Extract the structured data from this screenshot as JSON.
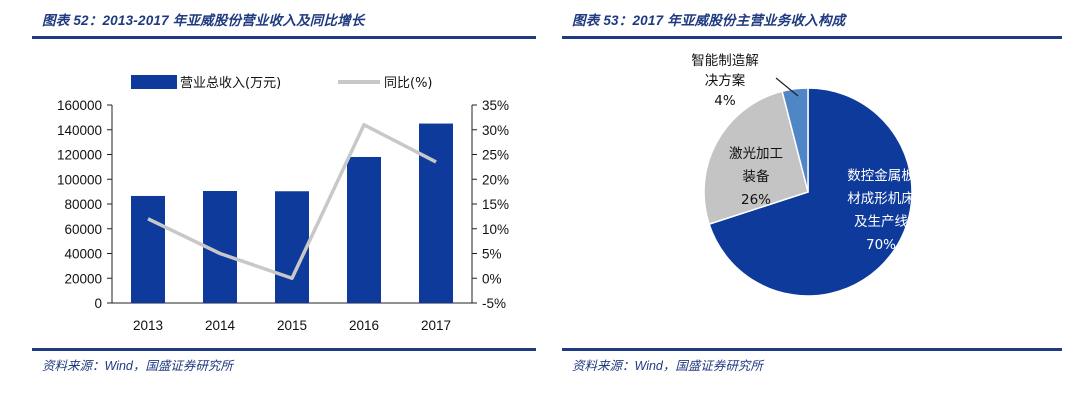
{
  "left": {
    "title": "图表 52：2013-2017 年亚威股份营业收入及同比增长",
    "source": "资料来源：Wind，国盛证券研究所"
  },
  "right": {
    "title": "图表 53：2017 年亚威股份主营业务收入构成",
    "source": "资料来源：Wind，国盛证券研究所"
  },
  "chart_data": [
    {
      "type": "bar",
      "categories": [
        "2013",
        "2014",
        "2015",
        "2016",
        "2017"
      ],
      "series": [
        {
          "name": "营业总收入(万元)",
          "type": "bar",
          "axis": "left",
          "color": "#0e3a9b",
          "values": [
            86500,
            90500,
            90300,
            118000,
            145000
          ]
        },
        {
          "name": "同比(%)",
          "type": "line",
          "axis": "right",
          "color": "#c8c8c8",
          "values": [
            12,
            5,
            0,
            31,
            23.5
          ]
        }
      ],
      "ylim": [
        0,
        160000
      ],
      "yticks": [
        "160000",
        "140000",
        "120000",
        "100000",
        "80000",
        "60000",
        "40000",
        "20000",
        "0"
      ],
      "y2lim": [
        -5,
        35
      ],
      "y2ticks": [
        "35%",
        "30%",
        "25%",
        "20%",
        "15%",
        "10%",
        "5%",
        "0%",
        "-5%"
      ],
      "legend_position": "top",
      "grid": false
    },
    {
      "type": "pie",
      "slices": [
        {
          "label_lines": [
            "数控金属板",
            "材成形机床",
            "及生产线",
            "70%"
          ],
          "value": 70,
          "color": "#0e3a9b",
          "label_color": "#ffffff"
        },
        {
          "label_lines": [
            "激光加工",
            "装备",
            "26%"
          ],
          "value": 26,
          "color": "#c4c4c4",
          "label_color": "#111111"
        },
        {
          "label_lines": [
            "智能制造解",
            "决方案",
            "4%"
          ],
          "value": 4,
          "color": "#4f86c6",
          "label_color": "#111111"
        }
      ]
    }
  ]
}
